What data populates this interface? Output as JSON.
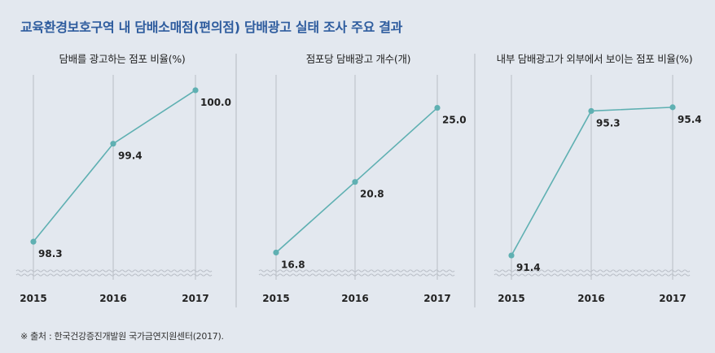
{
  "page": {
    "title": "교육환경보호구역 내 담배소매점(편의점) 담배광고 실태 조사 주요 결과",
    "footnote": "※ 출처 : 한국건강증진개발원 국가금연지원센터(2017)."
  },
  "colors": {
    "line": "#5fb0b2",
    "marker": "#5fb0b2",
    "grid": "#b9bec6",
    "divider": "#b5bac2",
    "title": "#2e5c9e",
    "background": "#e3e8ef"
  },
  "chart_data": [
    {
      "type": "line",
      "title": "담배를 광고하는 점포 비율(%)",
      "categories": [
        "2015",
        "2016",
        "2017"
      ],
      "series": [
        {
          "values": [
            98.3,
            99.4,
            100.0
          ]
        }
      ],
      "value_labels": [
        "98.3",
        "99.4",
        "100.0"
      ],
      "ylim": [
        98.0,
        100.1
      ],
      "axis_break": true,
      "grid": "vertical"
    },
    {
      "type": "line",
      "title": "점포당 담배광고 개수(개)",
      "categories": [
        "2015",
        "2016",
        "2017"
      ],
      "series": [
        {
          "values": [
            16.8,
            20.8,
            25.0
          ]
        }
      ],
      "value_labels": [
        "16.8",
        "20.8",
        "25.0"
      ],
      "ylim": [
        15.9,
        26.5
      ],
      "axis_break": true,
      "grid": "vertical"
    },
    {
      "type": "line",
      "title": "내부 담배광고가 외부에서 보이는 점포 비율(%)",
      "categories": [
        "2015",
        "2016",
        "2017"
      ],
      "series": [
        {
          "values": [
            91.4,
            95.3,
            95.4
          ]
        }
      ],
      "value_labels": [
        "91.4",
        "95.3",
        "95.4"
      ],
      "ylim": [
        91.05,
        96.1
      ],
      "axis_break": true,
      "grid": "vertical"
    }
  ]
}
